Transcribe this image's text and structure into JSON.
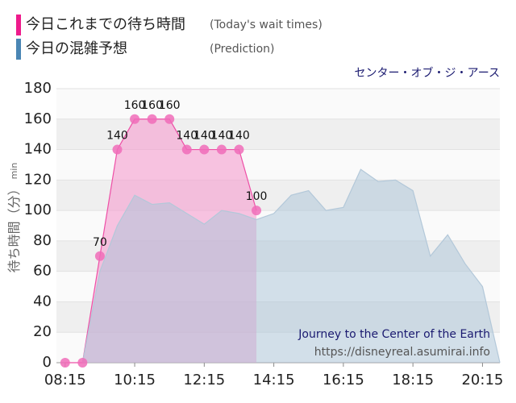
{
  "chart_data": {
    "type": "area",
    "subtitle": "センター・オブ・ジ・アース",
    "y_label": "待ち時間（分）",
    "y_unit": "min",
    "annotations": [
      "Journey to the Center of the Earth",
      "https://disneyreal.asumirai.info"
    ],
    "x": [
      "08:15",
      "08:45",
      "09:15",
      "09:45",
      "10:15",
      "10:45",
      "11:15",
      "11:45",
      "12:15",
      "12:45",
      "13:15",
      "13:45",
      "14:15",
      "14:45",
      "15:15",
      "15:45",
      "16:15",
      "16:45",
      "17:15",
      "17:45",
      "18:15",
      "18:45",
      "19:15",
      "19:45",
      "20:15",
      "20:45"
    ],
    "series": [
      {
        "name": "今日これまでの待ち時間",
        "note": "(Today's wait times)",
        "color": "#ee4fa6",
        "values": [
          0,
          0,
          70,
          140,
          160,
          160,
          160,
          140,
          140,
          140,
          140,
          100,
          null,
          null,
          null,
          null,
          null,
          null,
          null,
          null,
          null,
          null,
          null,
          null,
          null,
          null
        ]
      },
      {
        "name": "今日の混雑予想",
        "note": "(Prediction)",
        "color": "#4a86b4",
        "values": [
          null,
          0,
          60,
          90,
          110,
          104,
          105,
          98,
          91,
          100,
          98,
          94,
          98,
          110,
          113,
          100,
          102,
          127,
          119,
          120,
          113,
          70,
          84,
          65,
          50,
          0
        ]
      }
    ],
    "xlim": [
      "08:00",
      "20:45"
    ],
    "xticks": [
      "08:15",
      "10:15",
      "12:15",
      "14:15",
      "16:15",
      "18:15",
      "20:15"
    ],
    "ylim": [
      0,
      180
    ],
    "yticks": [
      0,
      20,
      40,
      60,
      80,
      100,
      120,
      140,
      160,
      180
    ],
    "grid": true
  }
}
